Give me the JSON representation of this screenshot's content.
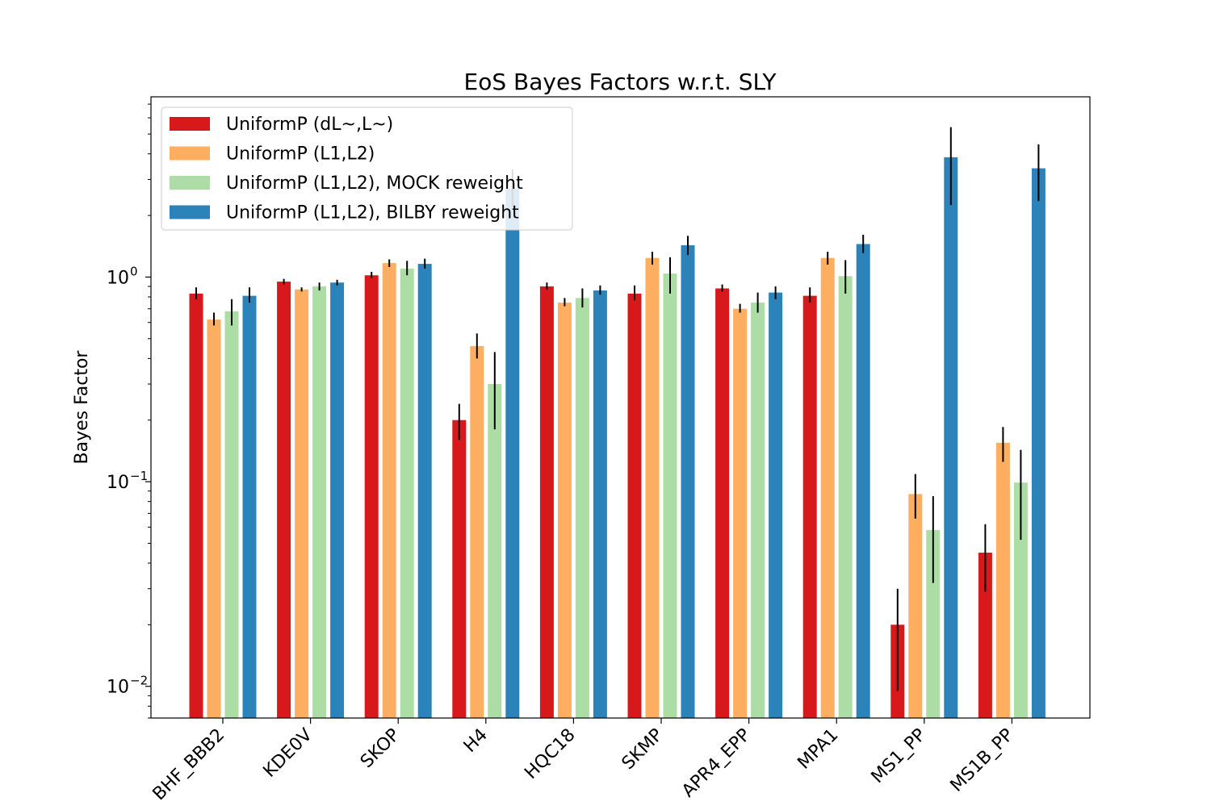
{
  "chart_data": {
    "type": "bar",
    "title": "EoS Bayes Factors w.r.t. SLY",
    "xlabel": "",
    "ylabel": "Bayes Factor",
    "yscale": "log",
    "ylim": [
      0.007,
      7.6
    ],
    "y_ticks": [
      {
        "value": 0.01,
        "mantissa": "10",
        "exponent": "−2"
      },
      {
        "value": 0.1,
        "mantissa": "10",
        "exponent": "−1"
      },
      {
        "value": 1,
        "mantissa": "10",
        "exponent": "0"
      }
    ],
    "grid": false,
    "legend_position": "upper-left",
    "categories": [
      "BHF_BBB2",
      "KDE0V",
      "SKOP",
      "H4",
      "HQC18",
      "SKMP",
      "APR4_EPP",
      "MPA1",
      "MS1_PP",
      "MS1B_PP"
    ],
    "series": [
      {
        "name": "UniformP (dL~,L~)",
        "color": "#d7191c",
        "values": [
          0.83,
          0.95,
          1.02,
          0.2,
          0.9,
          0.83,
          0.88,
          0.81,
          0.02,
          0.045
        ],
        "err_low": [
          0.78,
          0.92,
          0.99,
          0.16,
          0.87,
          0.77,
          0.85,
          0.75,
          0.0095,
          0.029
        ],
        "err_high": [
          0.89,
          0.98,
          1.06,
          0.24,
          0.94,
          0.91,
          0.92,
          0.89,
          0.03,
          0.062
        ]
      },
      {
        "name": "UniformP (L1,L2)",
        "color": "#fdae61",
        "values": [
          0.62,
          0.87,
          1.17,
          0.46,
          0.75,
          1.24,
          0.7,
          1.24,
          0.087,
          0.155
        ],
        "err_low": [
          0.58,
          0.85,
          1.12,
          0.4,
          0.72,
          1.15,
          0.67,
          1.15,
          0.066,
          0.125
        ],
        "err_high": [
          0.67,
          0.89,
          1.22,
          0.53,
          0.79,
          1.33,
          0.74,
          1.33,
          0.109,
          0.185
        ]
      },
      {
        "name": "UniformP (L1,L2), MOCK reweight",
        "color": "#abdda4",
        "values": [
          0.68,
          0.9,
          1.1,
          0.3,
          0.79,
          1.04,
          0.75,
          1.01,
          0.058,
          0.099
        ],
        "err_low": [
          0.58,
          0.86,
          1.02,
          0.18,
          0.71,
          0.83,
          0.67,
          0.83,
          0.032,
          0.052
        ],
        "err_high": [
          0.78,
          0.94,
          1.2,
          0.43,
          0.88,
          1.25,
          0.84,
          1.21,
          0.085,
          0.143
        ]
      },
      {
        "name": "UniformP (L1,L2), BILBY reweight",
        "color": "#2b83ba",
        "values": [
          0.81,
          0.94,
          1.16,
          2.7,
          0.86,
          1.43,
          0.84,
          1.45,
          3.85,
          3.4
        ],
        "err_low": [
          0.75,
          0.91,
          1.1,
          2.2,
          0.82,
          1.28,
          0.78,
          1.31,
          2.25,
          2.35
        ],
        "err_high": [
          0.89,
          0.97,
          1.23,
          3.35,
          0.91,
          1.59,
          0.9,
          1.61,
          5.4,
          4.45
        ]
      }
    ]
  }
}
